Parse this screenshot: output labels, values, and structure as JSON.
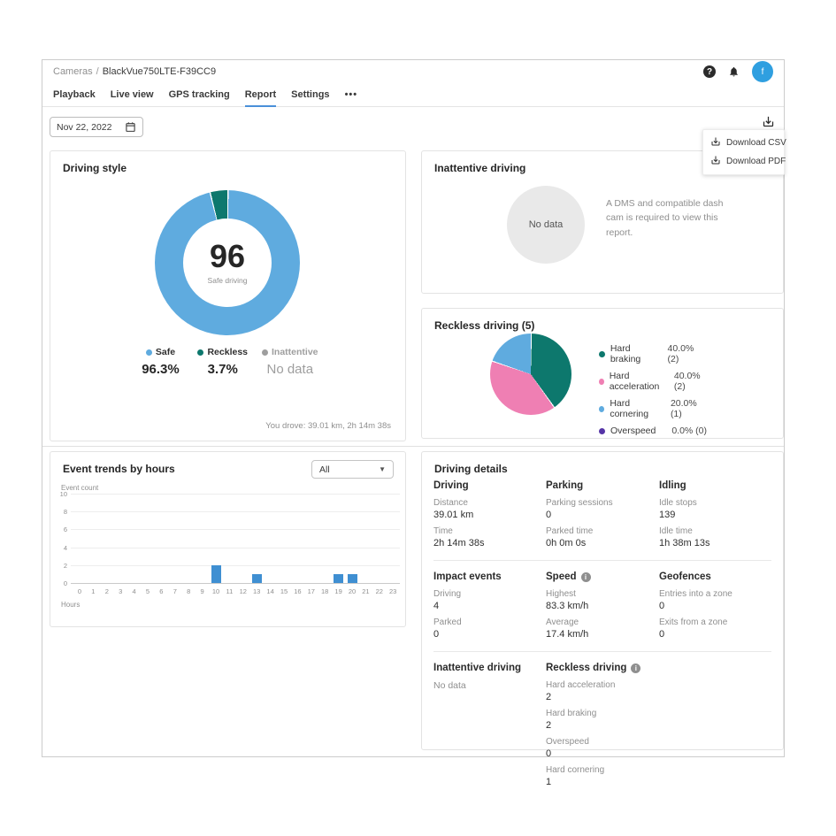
{
  "header": {
    "breadcrumb": {
      "root": "Cameras",
      "separator": "/",
      "camera": "BlackVue750LTE-F39CC9"
    },
    "avatar_text": "f"
  },
  "tabs": {
    "items": [
      {
        "label": "Playback",
        "active": false
      },
      {
        "label": "Live view",
        "active": false
      },
      {
        "label": "GPS tracking",
        "active": false
      },
      {
        "label": "Report",
        "active": true
      },
      {
        "label": "Settings",
        "active": false
      },
      {
        "label": "•••",
        "active": false
      }
    ]
  },
  "toolbar": {
    "date": "Nov 22, 2022"
  },
  "download_menu": {
    "items": [
      "Download CSV",
      "Download PDF"
    ]
  },
  "cards": {
    "driving_style": {
      "title": "Driving style",
      "score": "96",
      "score_label": "Safe driving",
      "legend": [
        {
          "name": "Safe",
          "value": "96.3%",
          "color": "#5fabdf",
          "muted": false
        },
        {
          "name": "Reckless",
          "value": "3.7%",
          "color": "#0d786d",
          "muted": false
        },
        {
          "name": "Inattentive",
          "value": "No data",
          "color": "#9e9e9e",
          "muted": true
        }
      ],
      "footer": "You drove: 39.01 km, 2h 14m 38s"
    },
    "inattentive": {
      "title": "Inattentive driving",
      "no_data": "No data",
      "message": "A DMS and compatible dash cam is required to view this report."
    },
    "reckless": {
      "title": "Reckless driving (5)",
      "legend": [
        {
          "name": "Hard braking",
          "value": "40.0% (2)",
          "color": "#0d786d"
        },
        {
          "name": "Hard acceleration",
          "value": "40.0% (2)",
          "color": "#ef7fb3"
        },
        {
          "name": "Hard cornering",
          "value": "20.0% (1)",
          "color": "#5fabdf"
        },
        {
          "name": "Overspeed",
          "value": "0.0% (0)",
          "color": "#5534a6"
        }
      ]
    },
    "event_trends": {
      "title": "Event trends by hours",
      "filter_value": "All",
      "ylabel": "Event count",
      "xlabel": "Hours"
    },
    "driving_details": {
      "title": "Driving details",
      "sections": [
        {
          "columns": [
            {
              "header": "Driving",
              "info": false,
              "rows": [
                {
                  "label": "Distance",
                  "value": "39.01 km"
                },
                {
                  "label": "Time",
                  "value": "2h 14m 38s"
                }
              ]
            },
            {
              "header": "Parking",
              "info": false,
              "rows": [
                {
                  "label": "Parking sessions",
                  "value": "0"
                },
                {
                  "label": "Parked time",
                  "value": "0h 0m 0s"
                }
              ]
            },
            {
              "header": "Idling",
              "info": false,
              "rows": [
                {
                  "label": "Idle stops",
                  "value": "139"
                },
                {
                  "label": "Idle time",
                  "value": "1h 38m 13s"
                }
              ]
            }
          ]
        },
        {
          "columns": [
            {
              "header": "Impact events",
              "info": false,
              "rows": [
                {
                  "label": "Driving",
                  "value": "4"
                },
                {
                  "label": "Parked",
                  "value": "0"
                }
              ]
            },
            {
              "header": "Speed",
              "info": true,
              "rows": [
                {
                  "label": "Highest",
                  "value": "83.3 km/h"
                },
                {
                  "label": "Average",
                  "value": "17.4 km/h"
                }
              ]
            },
            {
              "header": "Geofences",
              "info": false,
              "rows": [
                {
                  "label": "Entries into a zone",
                  "value": "0"
                },
                {
                  "label": "Exits from a zone",
                  "value": "0"
                }
              ]
            }
          ]
        },
        {
          "columns": [
            {
              "header": "Inattentive driving",
              "info": false,
              "rows": [
                {
                  "label": "No data",
                  "value": null
                }
              ]
            },
            {
              "header": "Reckless driving",
              "info": true,
              "rows": [
                {
                  "label": "Hard acceleration",
                  "value": "2"
                },
                {
                  "label": "Hard braking",
                  "value": "2"
                },
                {
                  "label": "Overspeed",
                  "value": "0"
                },
                {
                  "label": "Hard cornering",
                  "value": "1"
                }
              ]
            },
            {
              "header": "",
              "info": false,
              "rows": []
            }
          ]
        }
      ]
    }
  },
  "chart_data": [
    {
      "type": "donut",
      "title": "Driving style",
      "center_value": "96",
      "center_label": "Safe driving",
      "series": [
        {
          "label": "Safe",
          "pct": 96.3,
          "color": "#5fabdf"
        },
        {
          "label": "Reckless",
          "pct": 3.7,
          "color": "#0d786d"
        },
        {
          "label": "Inattentive",
          "pct": null,
          "color": "#9e9e9e"
        }
      ]
    },
    {
      "type": "pie",
      "title": "Reckless driving (5)",
      "slices": [
        {
          "label": "Hard braking",
          "pct": 40.0,
          "count": 2,
          "color": "#0d786d"
        },
        {
          "label": "Hard acceleration",
          "pct": 40.0,
          "count": 2,
          "color": "#ef7fb3"
        },
        {
          "label": "Hard cornering",
          "pct": 20.0,
          "count": 1,
          "color": "#5fabdf"
        },
        {
          "label": "Overspeed",
          "pct": 0.0,
          "count": 0,
          "color": "#5534a6"
        }
      ]
    },
    {
      "type": "bar",
      "title": "Event trends by hours",
      "xlabel": "Hours",
      "ylabel": "Event count",
      "ylim": [
        0,
        10
      ],
      "yticks": [
        0,
        2,
        4,
        6,
        8,
        10
      ],
      "categories": [
        0,
        1,
        2,
        3,
        4,
        5,
        6,
        7,
        8,
        9,
        10,
        11,
        12,
        13,
        14,
        15,
        16,
        17,
        18,
        19,
        20,
        21,
        22,
        23
      ],
      "values": [
        0,
        0,
        0,
        0,
        0,
        0,
        0,
        0,
        0,
        0,
        2,
        0,
        0,
        1,
        0,
        0,
        0,
        0,
        0,
        1,
        1,
        0,
        0,
        0
      ],
      "bar_color": "#3f8fd2"
    }
  ]
}
